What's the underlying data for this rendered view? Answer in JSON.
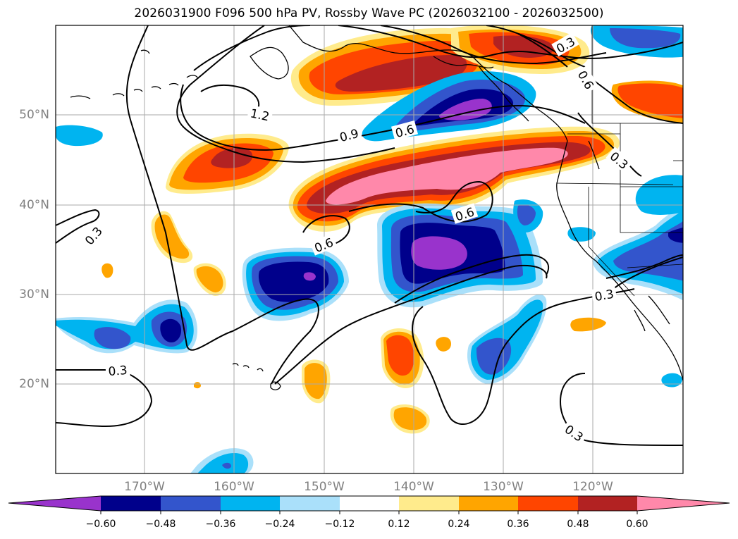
{
  "title": "2026031900 F096 500 hPa PV, Rossby Wave PC (2026032100 - 2026032500)",
  "map": {
    "lat_ticks": [
      "50°N",
      "40°N",
      "30°N",
      "20°N"
    ],
    "lon_ticks": [
      "170°W",
      "160°W",
      "150°W",
      "140°W",
      "130°W",
      "120°W"
    ],
    "contour_labels": [
      "1.2",
      "0.9",
      "0.6",
      "0.6",
      "0.6",
      "0.3",
      "0.3",
      "0.3",
      "0.3",
      "0.3",
      "0.6"
    ]
  },
  "colorbar": {
    "ticks": [
      "−0.60",
      "−0.48",
      "−0.36",
      "−0.24",
      "−0.12",
      "0.12",
      "0.24",
      "0.36",
      "0.48",
      "0.60"
    ],
    "colors": [
      "#9933cc",
      "#00008b",
      "#3355cc",
      "#00b4f0",
      "#aae0fa",
      "#ffffff",
      "#ffeb8c",
      "#ffa500",
      "#ff4500",
      "#b22222",
      "#ff88aa"
    ]
  }
}
